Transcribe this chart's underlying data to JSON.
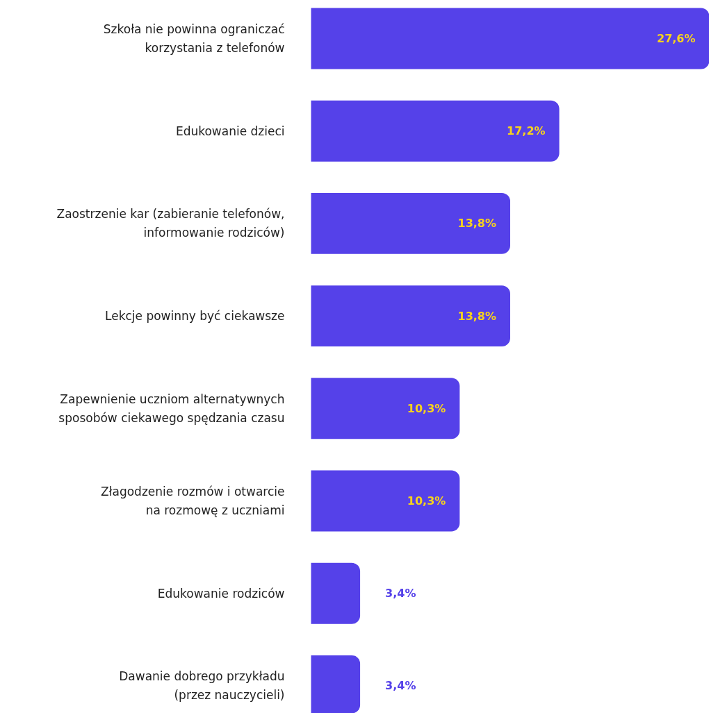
{
  "chart_data": {
    "type": "bar",
    "orientation": "horizontal",
    "color": "#5541e9",
    "categories": [
      "Szkoła nie powinna ograniczać\nkorzystania z telefonów",
      "Edukowanie dzieci",
      "Zaostrzenie kar (zabieranie telefonów,\ninformowanie rodziców)",
      "Lekcje powinny być ciekawsze",
      "Zapewnienie uczniom alternatywnych\nsposobów ciekawego spędzania czasu",
      "Złagodzenie rozmów i otwarcie\nna rozmowę z uczniami",
      "Edukowanie rodziców",
      "Dawanie dobrego przykładu\n(przez nauczycieli)"
    ],
    "values": [
      27.6,
      17.2,
      13.8,
      13.8,
      10.3,
      10.3,
      3.4,
      3.4
    ],
    "value_labels": [
      "27,6%",
      "17,2%",
      "13,8%",
      "13,8%",
      "10,3%",
      "10,3%",
      "3,4%",
      "3,4%"
    ]
  }
}
